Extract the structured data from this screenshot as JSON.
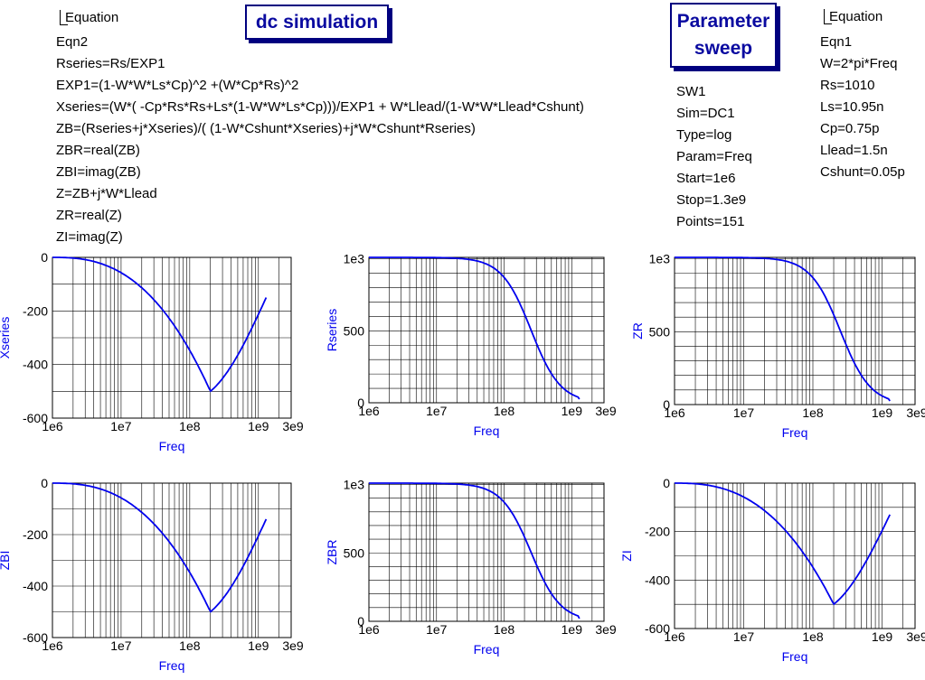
{
  "eqn2_block": {
    "tag": "Equation",
    "lines": [
      "Eqn2",
      "Rseries=Rs/EXP1",
      "EXP1=(1-W*W*Ls*Cp)^2 +(W*Cp*Rs)^2",
      "Xseries=(W*( -Cp*Rs*Rs+Ls*(1-W*W*Ls*Cp)))/EXP1 + W*Llead/(1-W*W*Llead*Cshunt)",
      "ZB=(Rseries+j*Xseries)/( (1-W*Cshunt*Xseries)+j*W*Cshunt*Rseries)",
      "ZBR=real(ZB)",
      "ZBI=imag(ZB)",
      "Z=ZB+j*W*Llead",
      "ZR=real(Z)",
      "ZI=imag(Z)"
    ]
  },
  "dc_title": "dc simulation",
  "sweep_title": [
    "Parameter",
    "sweep"
  ],
  "sweep_block": {
    "lines": [
      "SW1",
      "Sim=DC1",
      "Type=log",
      "Param=Freq",
      "Start=1e6",
      "Stop=1.3e9",
      "Points=151"
    ]
  },
  "eqn1_block": {
    "tag": "Equation",
    "lines": [
      "Eqn1",
      "W=2*pi*Freq",
      "Rs=1010",
      "Ls=10.95n",
      "Cp=0.75p",
      "Llead=1.5n",
      "Cshunt=0.05p"
    ]
  },
  "colors": {
    "curve": "#0000ee",
    "axis_label": "#0000ee",
    "title": "#0a0aa0",
    "title_border": "#00007f"
  },
  "chart_data": [
    {
      "type": "line",
      "xlabel": "Freq",
      "ylabel": "Xseries",
      "xscale": "log",
      "xlim": [
        1000000.0,
        3000000000.0
      ],
      "ylim": [
        -600,
        0
      ],
      "xticks": [
        "1e6",
        "1e7",
        "1e8",
        "1e9",
        "3e9"
      ],
      "yticks": [
        "0",
        "-200",
        "-400",
        "-600"
      ],
      "grid": true,
      "series": [
        {
          "x_range": [
            1000000.0,
            1300000000.0
          ],
          "peak_x": 200000000.0,
          "peak_y": -500,
          "end_y": -150,
          "shape": "dip"
        }
      ]
    },
    {
      "type": "line",
      "xlabel": "Freq",
      "ylabel": "Rseries",
      "xscale": "log",
      "xlim": [
        1000000.0,
        3000000000.0
      ],
      "ylim": [
        0,
        1010
      ],
      "xticks": [
        "1e6",
        "1e7",
        "1e8",
        "1e9",
        "3e9"
      ],
      "yticks": [
        "1e3",
        "500",
        "0"
      ],
      "grid": true,
      "series": [
        {
          "x_range": [
            1000000.0,
            1300000000.0
          ],
          "start_y": 1010,
          "end_y": 25,
          "shape": "drop"
        }
      ]
    },
    {
      "type": "line",
      "xlabel": "Freq",
      "ylabel": "ZR",
      "xscale": "log",
      "xlim": [
        1000000.0,
        3000000000.0
      ],
      "ylim": [
        0,
        1010
      ],
      "xticks": [
        "1e6",
        "1e7",
        "1e8",
        "1e9",
        "3e9"
      ],
      "yticks": [
        "1e3",
        "500",
        "0"
      ],
      "grid": true,
      "series": [
        {
          "x_range": [
            1000000.0,
            1300000000.0
          ],
          "start_y": 1010,
          "end_y": 25,
          "shape": "drop"
        }
      ]
    },
    {
      "type": "line",
      "xlabel": "Freq",
      "ylabel": "ZBI",
      "xscale": "log",
      "xlim": [
        1000000.0,
        3000000000.0
      ],
      "ylim": [
        -600,
        0
      ],
      "xticks": [
        "1e6",
        "1e7",
        "1e8",
        "1e9",
        "3e9"
      ],
      "yticks": [
        "0",
        "-200",
        "-400",
        "-600"
      ],
      "grid": true,
      "series": [
        {
          "x_range": [
            1000000.0,
            1300000000.0
          ],
          "peak_x": 200000000.0,
          "peak_y": -500,
          "end_y": -140,
          "shape": "dip"
        }
      ]
    },
    {
      "type": "line",
      "xlabel": "Freq",
      "ylabel": "ZBR",
      "xscale": "log",
      "xlim": [
        1000000.0,
        3000000000.0
      ],
      "ylim": [
        0,
        1010
      ],
      "xticks": [
        "1e6",
        "1e7",
        "1e8",
        "1e9",
        "3e9"
      ],
      "yticks": [
        "1e3",
        "500",
        "0"
      ],
      "grid": true,
      "series": [
        {
          "x_range": [
            1000000.0,
            1300000000.0
          ],
          "start_y": 1010,
          "end_y": 20,
          "shape": "drop"
        }
      ]
    },
    {
      "type": "line",
      "xlabel": "Freq",
      "ylabel": "ZI",
      "xscale": "log",
      "xlim": [
        1000000.0,
        3000000000.0
      ],
      "ylim": [
        -600,
        0
      ],
      "xticks": [
        "1e6",
        "1e7",
        "1e8",
        "1e9",
        "3e9"
      ],
      "yticks": [
        "0",
        "-200",
        "-400",
        "-600"
      ],
      "grid": true,
      "series": [
        {
          "x_range": [
            1000000.0,
            1300000000.0
          ],
          "peak_x": 200000000.0,
          "peak_y": -500,
          "end_y": -130,
          "shape": "dip"
        }
      ]
    }
  ]
}
